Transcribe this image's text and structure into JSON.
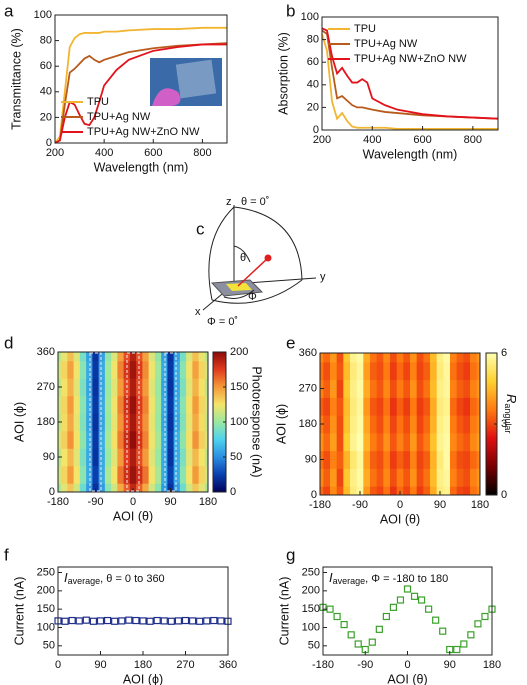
{
  "chart_data": [
    {
      "label": "a",
      "type": "line",
      "xlabel": "Wavelength (nm)",
      "ylabel": "Transmittance (%)",
      "xlim": [
        200,
        900
      ],
      "xticks": [
        200,
        400,
        600,
        800
      ],
      "ylim": [
        0,
        100
      ],
      "yticks": [
        0,
        20,
        40,
        60,
        80,
        100
      ],
      "legend": "lower left",
      "x": [
        200,
        220,
        240,
        260,
        280,
        300,
        320,
        340,
        360,
        380,
        400,
        450,
        500,
        600,
        700,
        800,
        900
      ],
      "series": [
        {
          "name": "TPU",
          "color": "#f2b531",
          "values": [
            0,
            5,
            40,
            75,
            82,
            85,
            86,
            86,
            86,
            86,
            87,
            87,
            88,
            89,
            89,
            90,
            90
          ]
        },
        {
          "name": "TPU+Ag NW",
          "color": "#b85a1c",
          "values": [
            0,
            2,
            30,
            55,
            58,
            62,
            66,
            68,
            65,
            63,
            65,
            68,
            71,
            74,
            76,
            77,
            78
          ]
        },
        {
          "name": "TPU+Ag NW+ZnO NW",
          "color": "#e3121c",
          "values": [
            0,
            2,
            20,
            32,
            30,
            22,
            15,
            14,
            20,
            32,
            45,
            57,
            65,
            72,
            75,
            77,
            77
          ]
        }
      ]
    },
    {
      "label": "b",
      "type": "line",
      "xlabel": "Wavelength (nm)",
      "ylabel": "Absorption (%)",
      "xlim": [
        200,
        900
      ],
      "xticks": [
        200,
        400,
        600,
        800
      ],
      "ylim": [
        0,
        100
      ],
      "yticks": [
        0,
        20,
        40,
        60,
        80,
        100
      ],
      "legend": "upper left",
      "x": [
        200,
        220,
        240,
        260,
        280,
        300,
        320,
        340,
        360,
        380,
        400,
        450,
        500,
        600,
        700,
        800,
        900
      ],
      "series": [
        {
          "name": "TPU",
          "color": "#f2b531",
          "values": [
            85,
            70,
            25,
            10,
            15,
            8,
            3,
            2,
            2,
            2,
            2,
            2,
            1,
            1,
            1,
            1,
            1
          ]
        },
        {
          "name": "TPU+Ag NW",
          "color": "#b85a1c",
          "values": [
            88,
            85,
            55,
            28,
            30,
            26,
            22,
            20,
            20,
            19,
            18,
            16,
            15,
            13,
            12,
            11,
            10
          ]
        },
        {
          "name": "TPU+Ag NW+ZnO NW",
          "color": "#e3121c",
          "values": [
            90,
            88,
            65,
            50,
            55,
            48,
            42,
            42,
            45,
            42,
            28,
            22,
            18,
            14,
            12,
            11,
            10
          ]
        }
      ]
    },
    {
      "label": "d",
      "type": "heatmap",
      "xlabel": "AOI (θ)",
      "ylabel": "AOI (ϕ)",
      "xlim": [
        -180,
        180
      ],
      "xticks": [
        -180,
        -90,
        0,
        90,
        180
      ],
      "ylim": [
        0,
        360
      ],
      "yticks": [
        0,
        90,
        180,
        270,
        360
      ],
      "zlim": [
        0,
        200
      ],
      "zticks": [
        0,
        50,
        100,
        150,
        200
      ],
      "colorbar_label": "Photoresponse (nA)",
      "colormap": [
        "#00005a",
        "#0a3fb0",
        "#2b8fe0",
        "#4fd2ee",
        "#9be8a0",
        "#f4e46a",
        "#f49a3a",
        "#e23a1e",
        "#8a0a0a"
      ],
      "x": [
        -180,
        -165,
        -150,
        -135,
        -120,
        -105,
        -90,
        -75,
        -60,
        -45,
        -30,
        -15,
        0,
        15,
        30,
        45,
        60,
        75,
        90,
        105,
        120,
        135,
        150,
        165,
        180
      ],
      "y": [
        0,
        45,
        90,
        135,
        180,
        225,
        270,
        315,
        360
      ],
      "values": [
        [
          105,
          120,
          135,
          115,
          85,
          55,
          20,
          55,
          95,
          115,
          145,
          165,
          185,
          165,
          145,
          115,
          95,
          55,
          20,
          55,
          85,
          115,
          135,
          120,
          105
        ],
        [
          115,
          130,
          150,
          125,
          95,
          60,
          25,
          60,
          105,
          125,
          160,
          180,
          195,
          180,
          160,
          125,
          105,
          60,
          25,
          60,
          95,
          125,
          150,
          130,
          115
        ],
        [
          110,
          125,
          140,
          120,
          90,
          60,
          20,
          60,
          100,
          120,
          150,
          175,
          190,
          170,
          150,
          120,
          100,
          60,
          20,
          60,
          90,
          120,
          140,
          125,
          110
        ],
        [
          118,
          132,
          152,
          126,
          96,
          62,
          22,
          62,
          104,
          126,
          158,
          182,
          198,
          178,
          156,
          124,
          104,
          62,
          22,
          62,
          96,
          126,
          152,
          132,
          118
        ],
        [
          112,
          128,
          145,
          122,
          92,
          58,
          20,
          58,
          100,
          122,
          152,
          176,
          192,
          172,
          152,
          122,
          100,
          58,
          20,
          58,
          92,
          122,
          145,
          128,
          112
        ],
        [
          115,
          130,
          150,
          124,
          94,
          60,
          22,
          60,
          102,
          124,
          156,
          180,
          196,
          176,
          156,
          124,
          102,
          60,
          22,
          60,
          94,
          124,
          150,
          130,
          115
        ],
        [
          110,
          126,
          142,
          120,
          90,
          58,
          20,
          58,
          100,
          120,
          150,
          172,
          190,
          170,
          150,
          120,
          100,
          58,
          20,
          58,
          90,
          120,
          142,
          126,
          110
        ],
        [
          116,
          130,
          148,
          124,
          94,
          60,
          22,
          60,
          102,
          124,
          156,
          178,
          194,
          176,
          154,
          124,
          102,
          60,
          22,
          60,
          94,
          124,
          148,
          130,
          116
        ],
        [
          108,
          122,
          138,
          118,
          88,
          56,
          20,
          56,
          98,
          118,
          148,
          170,
          188,
          168,
          148,
          118,
          98,
          56,
          20,
          56,
          88,
          118,
          138,
          122,
          108
        ]
      ]
    },
    {
      "label": "e",
      "type": "heatmap",
      "xlabel": "AOI (θ)",
      "ylabel": "AOI (ϕ)",
      "xlim": [
        -180,
        180
      ],
      "xticks": [
        -180,
        -90,
        0,
        90,
        180
      ],
      "ylim": [
        0,
        360
      ],
      "yticks": [
        0,
        90,
        180,
        270,
        360
      ],
      "zlim": [
        0,
        6
      ],
      "zticks": [
        0,
        3,
        6
      ],
      "colorbar_label": {
        "symbol": "R",
        "subscript": "angular"
      },
      "colormap": [
        "#000000",
        "#7a0000",
        "#e01010",
        "#ff7a10",
        "#ffd030",
        "#ffffb0"
      ],
      "x": [
        -180,
        -165,
        -150,
        -135,
        -120,
        -105,
        -90,
        -75,
        -60,
        -45,
        -30,
        -15,
        0,
        15,
        30,
        45,
        60,
        75,
        90,
        105,
        120,
        135,
        150,
        165,
        180
      ],
      "y": [
        0,
        45,
        90,
        135,
        180,
        225,
        270,
        315,
        360
      ],
      "values": [
        [
          3.4,
          3.0,
          3.8,
          3.2,
          4.5,
          5.5,
          5.8,
          4.0,
          3.2,
          3.0,
          3.5,
          2.8,
          3.4,
          3.0,
          3.6,
          2.9,
          3.3,
          4.3,
          5.5,
          5.7,
          3.4,
          3.0,
          2.9,
          3.5,
          3.8
        ],
        [
          3.8,
          3.3,
          4.0,
          3.0,
          4.7,
          5.6,
          5.9,
          4.3,
          3.5,
          3.2,
          3.8,
          3.1,
          3.6,
          3.2,
          3.9,
          3.1,
          3.5,
          4.5,
          5.6,
          5.8,
          3.7,
          3.3,
          3.1,
          3.7,
          4.0
        ],
        [
          3.5,
          3.1,
          3.7,
          3.3,
          4.4,
          5.4,
          5.8,
          4.1,
          3.3,
          3.1,
          3.6,
          2.9,
          3.3,
          3.0,
          3.7,
          3.0,
          3.3,
          4.4,
          5.5,
          5.9,
          3.5,
          3.1,
          3.0,
          3.4,
          3.7
        ],
        [
          3.9,
          3.4,
          4.1,
          3.1,
          4.8,
          5.7,
          6.0,
          4.4,
          3.6,
          3.3,
          3.9,
          3.2,
          3.7,
          3.3,
          4.0,
          3.2,
          3.6,
          4.6,
          5.7,
          5.9,
          3.8,
          3.4,
          3.2,
          3.8,
          4.1
        ],
        [
          3.6,
          3.2,
          3.9,
          3.1,
          4.6,
          5.6,
          5.9,
          4.2,
          3.4,
          3.1,
          3.7,
          3.0,
          3.5,
          3.1,
          3.8,
          3.0,
          3.4,
          4.4,
          5.6,
          5.8,
          3.6,
          3.2,
          3.0,
          3.6,
          3.9
        ],
        [
          3.3,
          3.0,
          3.7,
          3.2,
          4.5,
          5.5,
          5.8,
          4.0,
          3.2,
          3.0,
          3.5,
          2.8,
          3.3,
          2.9,
          3.6,
          2.9,
          3.2,
          4.3,
          5.5,
          5.7,
          3.4,
          3.0,
          2.8,
          3.4,
          3.7
        ],
        [
          3.7,
          3.3,
          4.0,
          3.0,
          4.7,
          5.6,
          5.9,
          4.3,
          3.5,
          3.2,
          3.8,
          3.1,
          3.6,
          3.2,
          3.9,
          3.1,
          3.5,
          4.5,
          5.6,
          5.8,
          3.7,
          3.3,
          3.1,
          3.7,
          4.0
        ],
        [
          3.5,
          3.1,
          3.8,
          3.2,
          4.5,
          5.5,
          5.8,
          4.1,
          3.3,
          3.1,
          3.6,
          2.9,
          3.4,
          3.0,
          3.7,
          3.0,
          3.3,
          4.4,
          5.5,
          5.8,
          3.5,
          3.1,
          2.9,
          3.5,
          3.8
        ],
        [
          3.8,
          3.4,
          4.0,
          3.1,
          4.7,
          5.7,
          5.9,
          4.3,
          3.5,
          3.2,
          3.8,
          3.1,
          3.6,
          3.2,
          3.9,
          3.1,
          3.5,
          4.5,
          5.6,
          5.9,
          3.7,
          3.3,
          3.1,
          3.7,
          4.0
        ]
      ]
    },
    {
      "label": "f",
      "type": "scatter",
      "xlabel": "AOI (ϕ)",
      "ylabel": "Current (nA)",
      "color": "#1f2f8a",
      "annotation": {
        "symbol": "I",
        "subscript": "average",
        "text": ", θ = 0 to 360"
      },
      "xlim": [
        0,
        360
      ],
      "xticks": [
        0,
        90,
        180,
        270,
        360
      ],
      "ylim": [
        25,
        265
      ],
      "yticks": [
        50,
        100,
        150,
        200,
        250
      ],
      "x": [
        0,
        15,
        30,
        45,
        60,
        75,
        90,
        105,
        120,
        135,
        150,
        165,
        180,
        195,
        210,
        225,
        240,
        255,
        270,
        285,
        300,
        315,
        330,
        345,
        360
      ],
      "values": [
        118,
        117,
        119,
        118,
        120,
        117,
        118,
        119,
        117,
        118,
        120,
        119,
        118,
        117,
        119,
        118,
        117,
        118,
        119,
        118,
        117,
        118,
        119,
        118,
        117
      ]
    },
    {
      "label": "g",
      "type": "scatter",
      "xlabel": "AOI (θ)",
      "ylabel": "Current (nA)",
      "color": "#3aa02a",
      "annotation": {
        "symbol": "I",
        "subscript": "average",
        "text": ", Φ = -180 to 180"
      },
      "xlim": [
        -180,
        180
      ],
      "xticks": [
        -180,
        -90,
        0,
        90,
        180
      ],
      "ylim": [
        25,
        265
      ],
      "yticks": [
        50,
        100,
        150,
        200,
        250
      ],
      "x": [
        -180,
        -165,
        -150,
        -135,
        -120,
        -105,
        -90,
        -75,
        -60,
        -45,
        -30,
        -15,
        0,
        15,
        30,
        45,
        60,
        75,
        90,
        105,
        120,
        135,
        150,
        165,
        180
      ],
      "values": [
        155,
        150,
        130,
        108,
        80,
        55,
        40,
        60,
        95,
        130,
        155,
        175,
        205,
        185,
        175,
        150,
        120,
        90,
        40,
        40,
        55,
        80,
        110,
        130,
        150
      ]
    }
  ],
  "diagram": {
    "label": "c",
    "z_axis": "z",
    "z_note": "θ = 0˚",
    "y_axis": "y",
    "x_axis": "x",
    "x_note": "Φ = 0˚",
    "theta": "θ",
    "phi": "Φ"
  }
}
